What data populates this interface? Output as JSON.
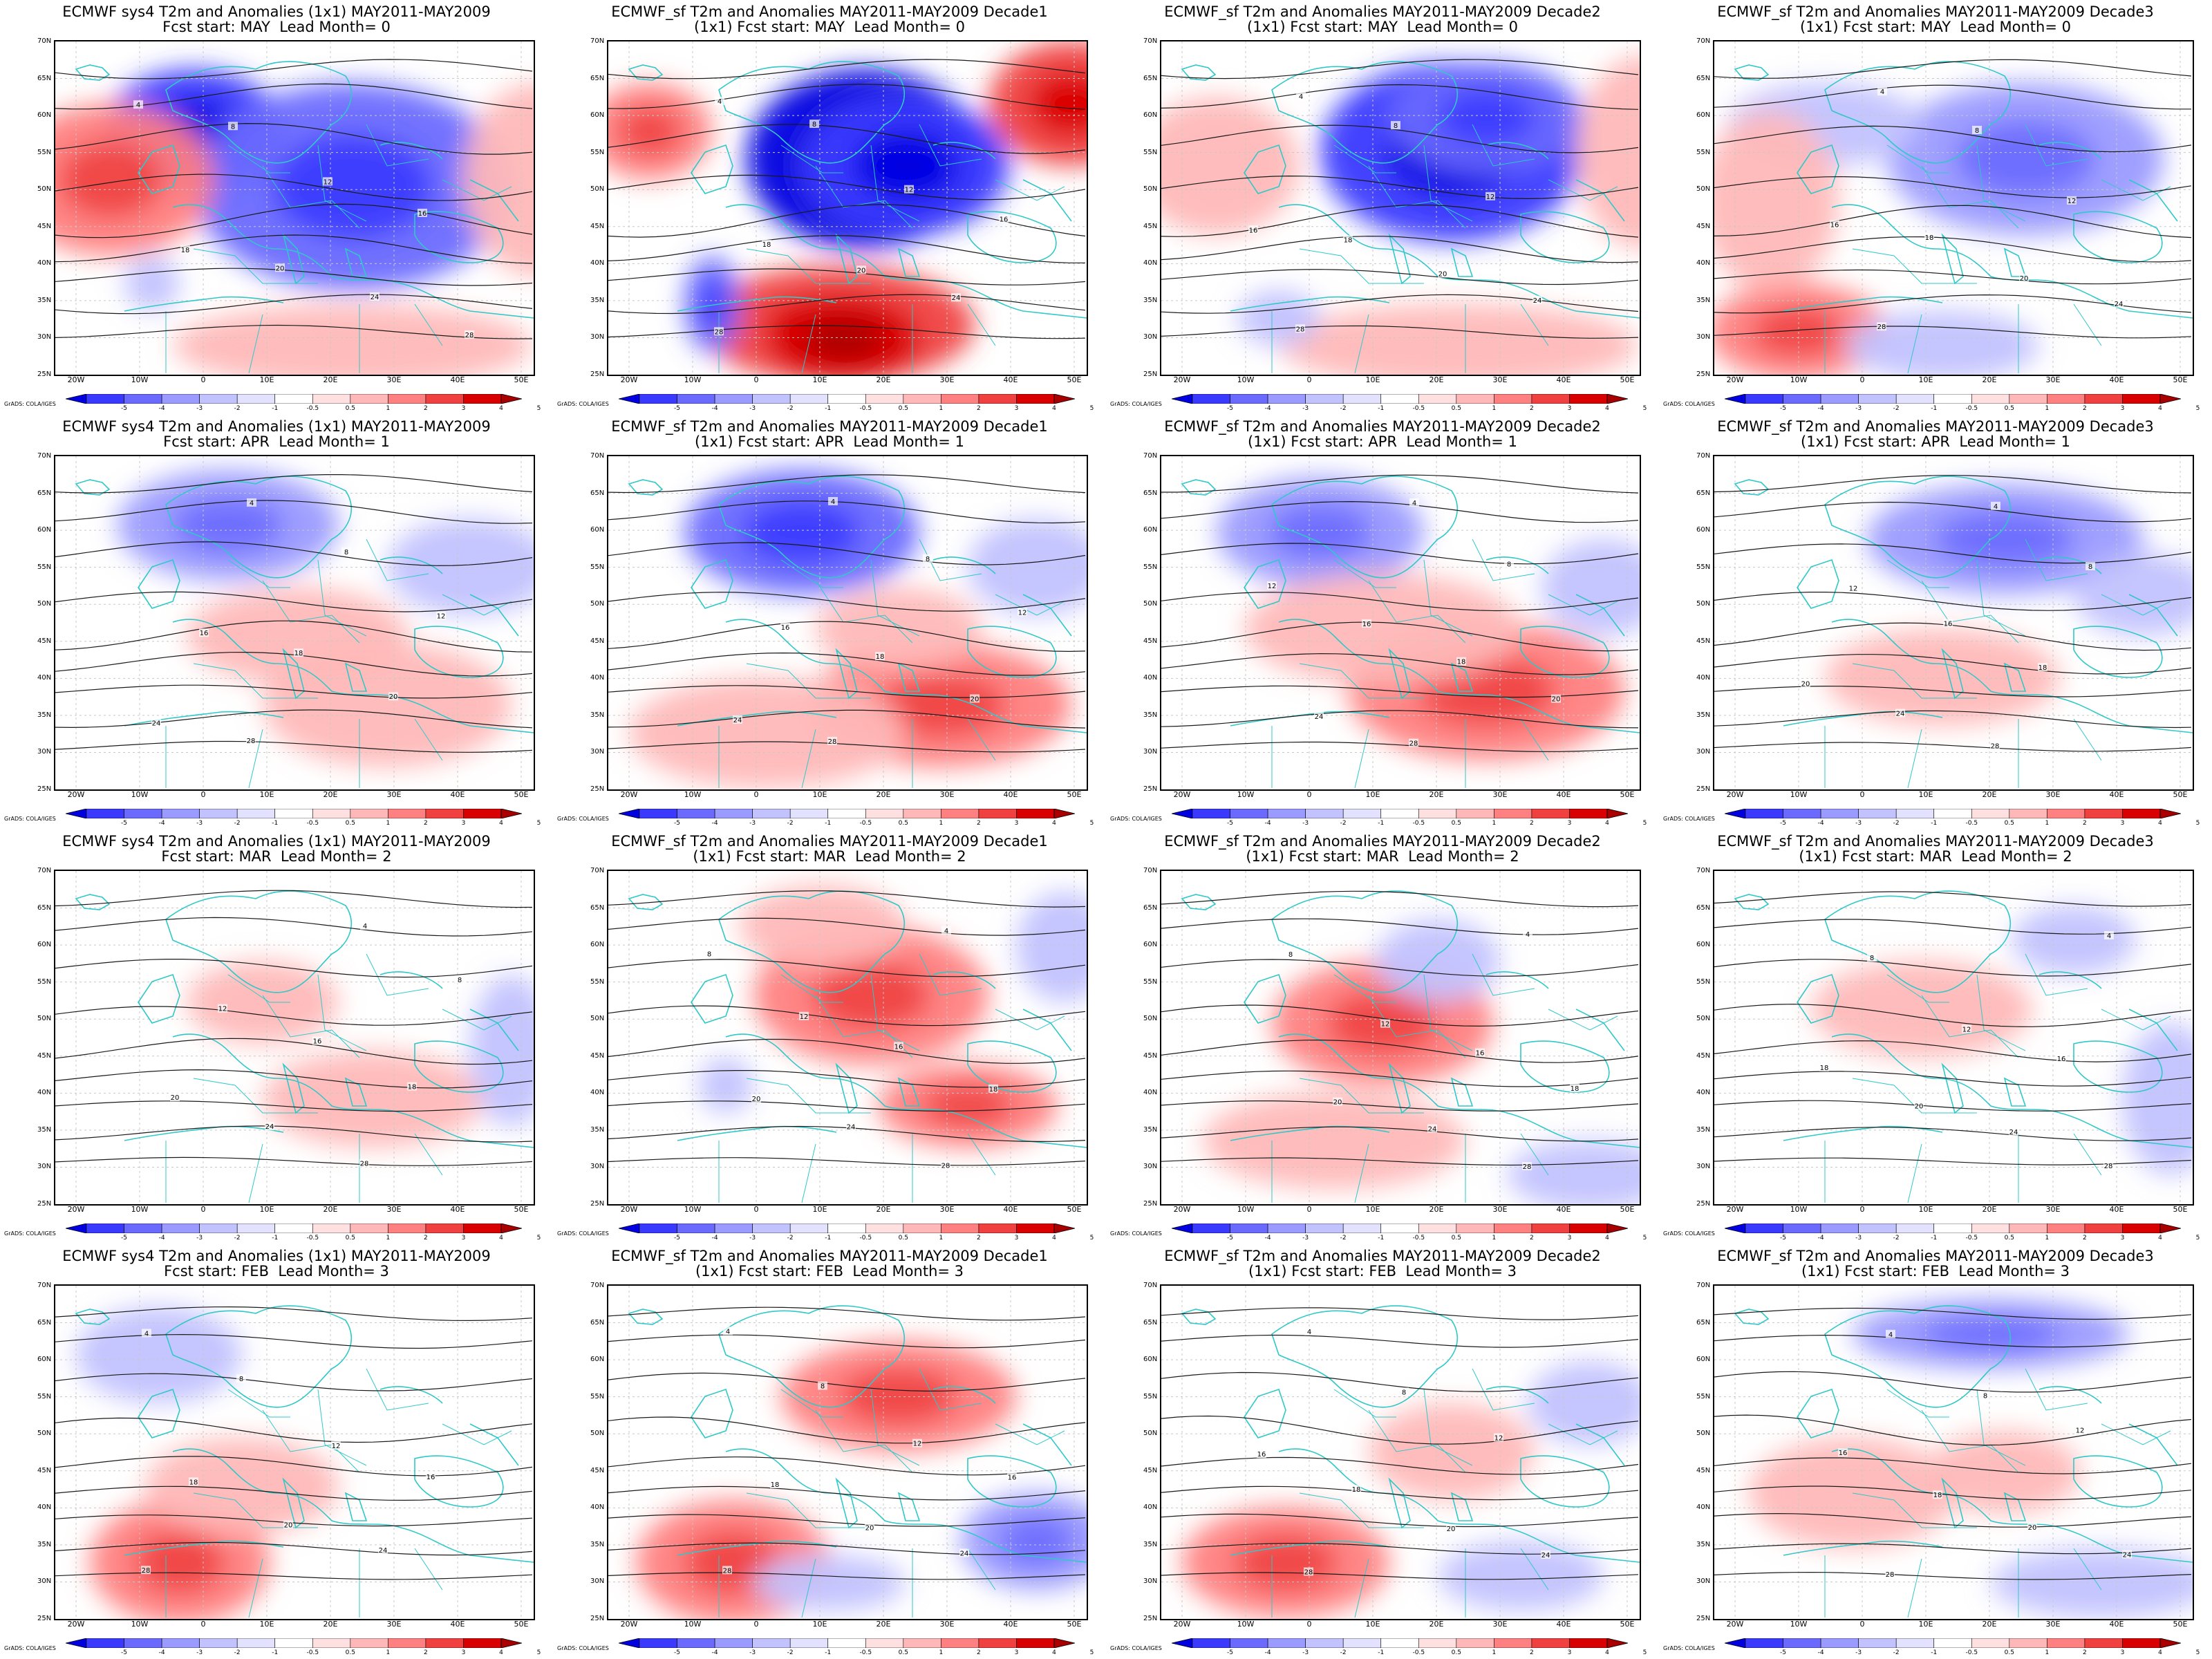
{
  "panels": [
    {
      "row": 0,
      "col": 0,
      "title_lines": [
        "ECMWF sys4 T2m and Anomalies (1x1) MAY2011-MAY2009",
        "Fcst start: MAY  Lead Month= 0"
      ],
      "anomaly_pattern": [
        [
          -5,
          200,
          130,
          130,
          90
        ],
        [
          -4,
          430,
          210,
          230,
          150
        ],
        [
          3,
          80,
          200,
          150,
          110
        ],
        [
          2,
          700,
          200,
          110,
          140
        ],
        [
          2,
          430,
          440,
          260,
          60
        ],
        [
          -2,
          140,
          350,
          40,
          40
        ]
      ]
    },
    {
      "row": 0,
      "col": 1,
      "title_lines": [
        "ECMWF_sf T2m and Anomalies MAY2011-MAY2009 Decade1",
        "(1x1) Fcst start: MAY  Lead Month= 0"
      ],
      "anomaly_pattern": [
        [
          -6,
          370,
          170,
          170,
          130
        ],
        [
          -5,
          430,
          180,
          150,
          100
        ],
        [
          4,
          330,
          410,
          200,
          85
        ],
        [
          5,
          340,
          430,
          110,
          60
        ],
        [
          4,
          670,
          90,
          120,
          90
        ],
        [
          3,
          60,
          130,
          90,
          70
        ],
        [
          -4,
          150,
          380,
          40,
          70
        ]
      ]
    },
    {
      "row": 0,
      "col": 2,
      "title_lines": [
        "ECMWF_sf T2m and Anomalies MAY2011-MAY2009 Decade2",
        "(1x1) Fcst start: MAY  Lead Month= 0"
      ],
      "anomaly_pattern": [
        [
          -5,
          420,
          160,
          190,
          130
        ],
        [
          -4,
          470,
          110,
          140,
          80
        ],
        [
          2,
          80,
          180,
          120,
          100
        ],
        [
          2,
          700,
          160,
          100,
          140
        ],
        [
          2,
          430,
          440,
          260,
          60
        ],
        [
          -2,
          170,
          400,
          60,
          40
        ]
      ]
    },
    {
      "row": 0,
      "col": 3,
      "title_lines": [
        "ECMWF_sf T2m and Anomalies MAY2011-MAY2009 Decade3",
        "(1x1) Fcst start: MAY  Lead Month= 0"
      ],
      "anomaly_pattern": [
        [
          -3,
          450,
          170,
          200,
          110
        ],
        [
          -2,
          160,
          120,
          140,
          60
        ],
        [
          3,
          120,
          420,
          130,
          70
        ],
        [
          2,
          80,
          230,
          100,
          130
        ],
        [
          -2,
          330,
          440,
          140,
          50
        ]
      ]
    },
    {
      "row": 1,
      "col": 0,
      "title_lines": [
        "ECMWF sys4 T2m and Anomalies (1x1) MAY2011-MAY2009",
        "Fcst start: APR  Lead Month= 1"
      ],
      "anomaly_pattern": [
        [
          -3,
          250,
          100,
          160,
          80
        ],
        [
          -2,
          600,
          160,
          120,
          70
        ],
        [
          2,
          480,
          360,
          180,
          90
        ],
        [
          2,
          350,
          260,
          160,
          70
        ]
      ]
    },
    {
      "row": 1,
      "col": 1,
      "title_lines": [
        "ECMWF_sf T2m and Anomalies MAY2011-MAY2009 Decade1",
        "(1x1) Fcst start: APR  Lead Month= 1"
      ],
      "anomaly_pattern": [
        [
          -4,
          280,
          110,
          170,
          90
        ],
        [
          -2,
          620,
          160,
          100,
          70
        ],
        [
          3,
          480,
          360,
          190,
          90
        ],
        [
          2,
          230,
          400,
          200,
          80
        ],
        [
          2,
          420,
          250,
          120,
          60
        ]
      ]
    },
    {
      "row": 1,
      "col": 2,
      "title_lines": [
        "ECMWF_sf T2m and Anomalies MAY2011-MAY2009 Decade2",
        "(1x1) Fcst start: APR  Lead Month= 1"
      ],
      "anomaly_pattern": [
        [
          -3,
          230,
          110,
          150,
          80
        ],
        [
          -2,
          640,
          190,
          90,
          70
        ],
        [
          3,
          470,
          340,
          200,
          100
        ],
        [
          2,
          320,
          250,
          200,
          80
        ]
      ]
    },
    {
      "row": 1,
      "col": 3,
      "title_lines": [
        "ECMWF_sf T2m and Anomalies MAY2011-MAY2009 Decade3",
        "(1x1) Fcst start: APR  Lead Month= 1"
      ],
      "anomaly_pattern": [
        [
          -3,
          420,
          120,
          200,
          80
        ],
        [
          -2,
          620,
          200,
          100,
          60
        ],
        [
          2,
          330,
          320,
          170,
          70
        ]
      ]
    },
    {
      "row": 2,
      "col": 0,
      "title_lines": [
        "ECMWF sys4 T2m and Anomalies (1x1) MAY2011-MAY2009",
        "Fcst start: MAR  Lead Month= 2"
      ],
      "anomaly_pattern": [
        [
          2,
          300,
          190,
          110,
          60
        ],
        [
          2,
          460,
          330,
          160,
          70
        ],
        [
          -2,
          660,
          260,
          60,
          110
        ]
      ]
    },
    {
      "row": 2,
      "col": 1,
      "title_lines": [
        "ECMWF_sf T2m and Anomalies MAY2011-MAY2009 Decade1",
        "(1x1) Fcst start: MAR  Lead Month= 2"
      ],
      "anomaly_pattern": [
        [
          3,
          380,
          180,
          170,
          100
        ],
        [
          3,
          520,
          340,
          130,
          60
        ],
        [
          2,
          310,
          80,
          120,
          60
        ],
        [
          -2,
          660,
          110,
          70,
          80
        ],
        [
          -2,
          170,
          310,
          40,
          40
        ]
      ]
    },
    {
      "row": 2,
      "col": 2,
      "title_lines": [
        "ECMWF_sf T2m and Anomalies MAY2011-MAY2009 Decade2",
        "(1x1) Fcst start: MAR  Lead Month= 2"
      ],
      "anomaly_pattern": [
        [
          3,
          320,
          220,
          160,
          90
        ],
        [
          2,
          250,
          390,
          190,
          70
        ],
        [
          -2,
          400,
          130,
          90,
          60
        ],
        [
          -2,
          620,
          440,
          120,
          50
        ]
      ]
    },
    {
      "row": 2,
      "col": 3,
      "title_lines": [
        "ECMWF_sf T2m and Anomalies MAY2011-MAY2009 Decade3",
        "(1x1) Fcst start: MAR  Lead Month= 2"
      ],
      "anomaly_pattern": [
        [
          2,
          300,
          200,
          160,
          70
        ],
        [
          -2,
          660,
          330,
          70,
          110
        ],
        [
          -2,
          520,
          100,
          90,
          50
        ]
      ]
    },
    {
      "row": 3,
      "col": 0,
      "title_lines": [
        "ECMWF sys4 T2m and Anomalies (1x1) MAY2011-MAY2009",
        "Fcst start: FEB  Lead Month= 3"
      ],
      "anomaly_pattern": [
        [
          3,
          180,
          400,
          130,
          90
        ],
        [
          2,
          270,
          290,
          140,
          70
        ],
        [
          -2,
          150,
          100,
          120,
          70
        ]
      ]
    },
    {
      "row": 3,
      "col": 1,
      "title_lines": [
        "ECMWF_sf T2m and Anomalies MAY2011-MAY2009 Decade1",
        "(1x1) Fcst start: FEB  Lead Month= 3"
      ],
      "anomaly_pattern": [
        [
          3,
          180,
          400,
          140,
          90
        ],
        [
          3,
          420,
          160,
          170,
          80
        ],
        [
          -3,
          620,
          370,
          110,
          70
        ],
        [
          -2,
          320,
          430,
          110,
          40
        ]
      ]
    },
    {
      "row": 3,
      "col": 2,
      "title_lines": [
        "ECMWF_sf T2m and Anomalies MAY2011-MAY2009 Decade2",
        "(1x1) Fcst start: FEB  Lead Month= 3"
      ],
      "anomaly_pattern": [
        [
          3,
          180,
          400,
          150,
          80
        ],
        [
          2,
          420,
          240,
          120,
          70
        ],
        [
          -2,
          620,
          170,
          90,
          60
        ],
        [
          -2,
          520,
          420,
          120,
          50
        ]
      ]
    },
    {
      "row": 3,
      "col": 3,
      "title_lines": [
        "ECMWF_sf T2m and Anomalies MAY2011-MAY2009 Decade3",
        "(1x1) Fcst start: FEB  Lead Month= 3"
      ],
      "anomaly_pattern": [
        [
          2,
          200,
          300,
          150,
          80
        ],
        [
          2,
          420,
          270,
          110,
          60
        ],
        [
          -3,
          400,
          70,
          200,
          50
        ],
        [
          -2,
          560,
          430,
          160,
          50
        ]
      ]
    }
  ],
  "lat_labels": [
    "70N",
    "65N",
    "60N",
    "55N",
    "50N",
    "45N",
    "40N",
    "35N",
    "30N",
    "25N"
  ],
  "lon_labels": [
    "20W",
    "10W",
    "0",
    "10E",
    "20E",
    "30E",
    "40E",
    "50E"
  ],
  "colorbar_labels": [
    "-5",
    "-4",
    "-3",
    "-2",
    "-1",
    "-0.5",
    "0.5",
    "1",
    "2",
    "3",
    "4",
    "5"
  ],
  "colorbar_colors": [
    "#0000e0",
    "#3a3aff",
    "#6a6aff",
    "#9a9aff",
    "#c2c2ff",
    "#e2e2ff",
    "#ffffff",
    "#ffe0e0",
    "#ffb8b8",
    "#ff8080",
    "#f04040",
    "#d80000",
    "#a80000"
  ],
  "credit": "GrADS: COLA/IGES",
  "contour_labels": [
    "4",
    "8",
    "12",
    "16",
    "18",
    "20",
    "24",
    "28"
  ],
  "colors": {
    "coast": "#30c8c8",
    "contour": "#1a1a1a",
    "grid": "#c8c8c8"
  }
}
